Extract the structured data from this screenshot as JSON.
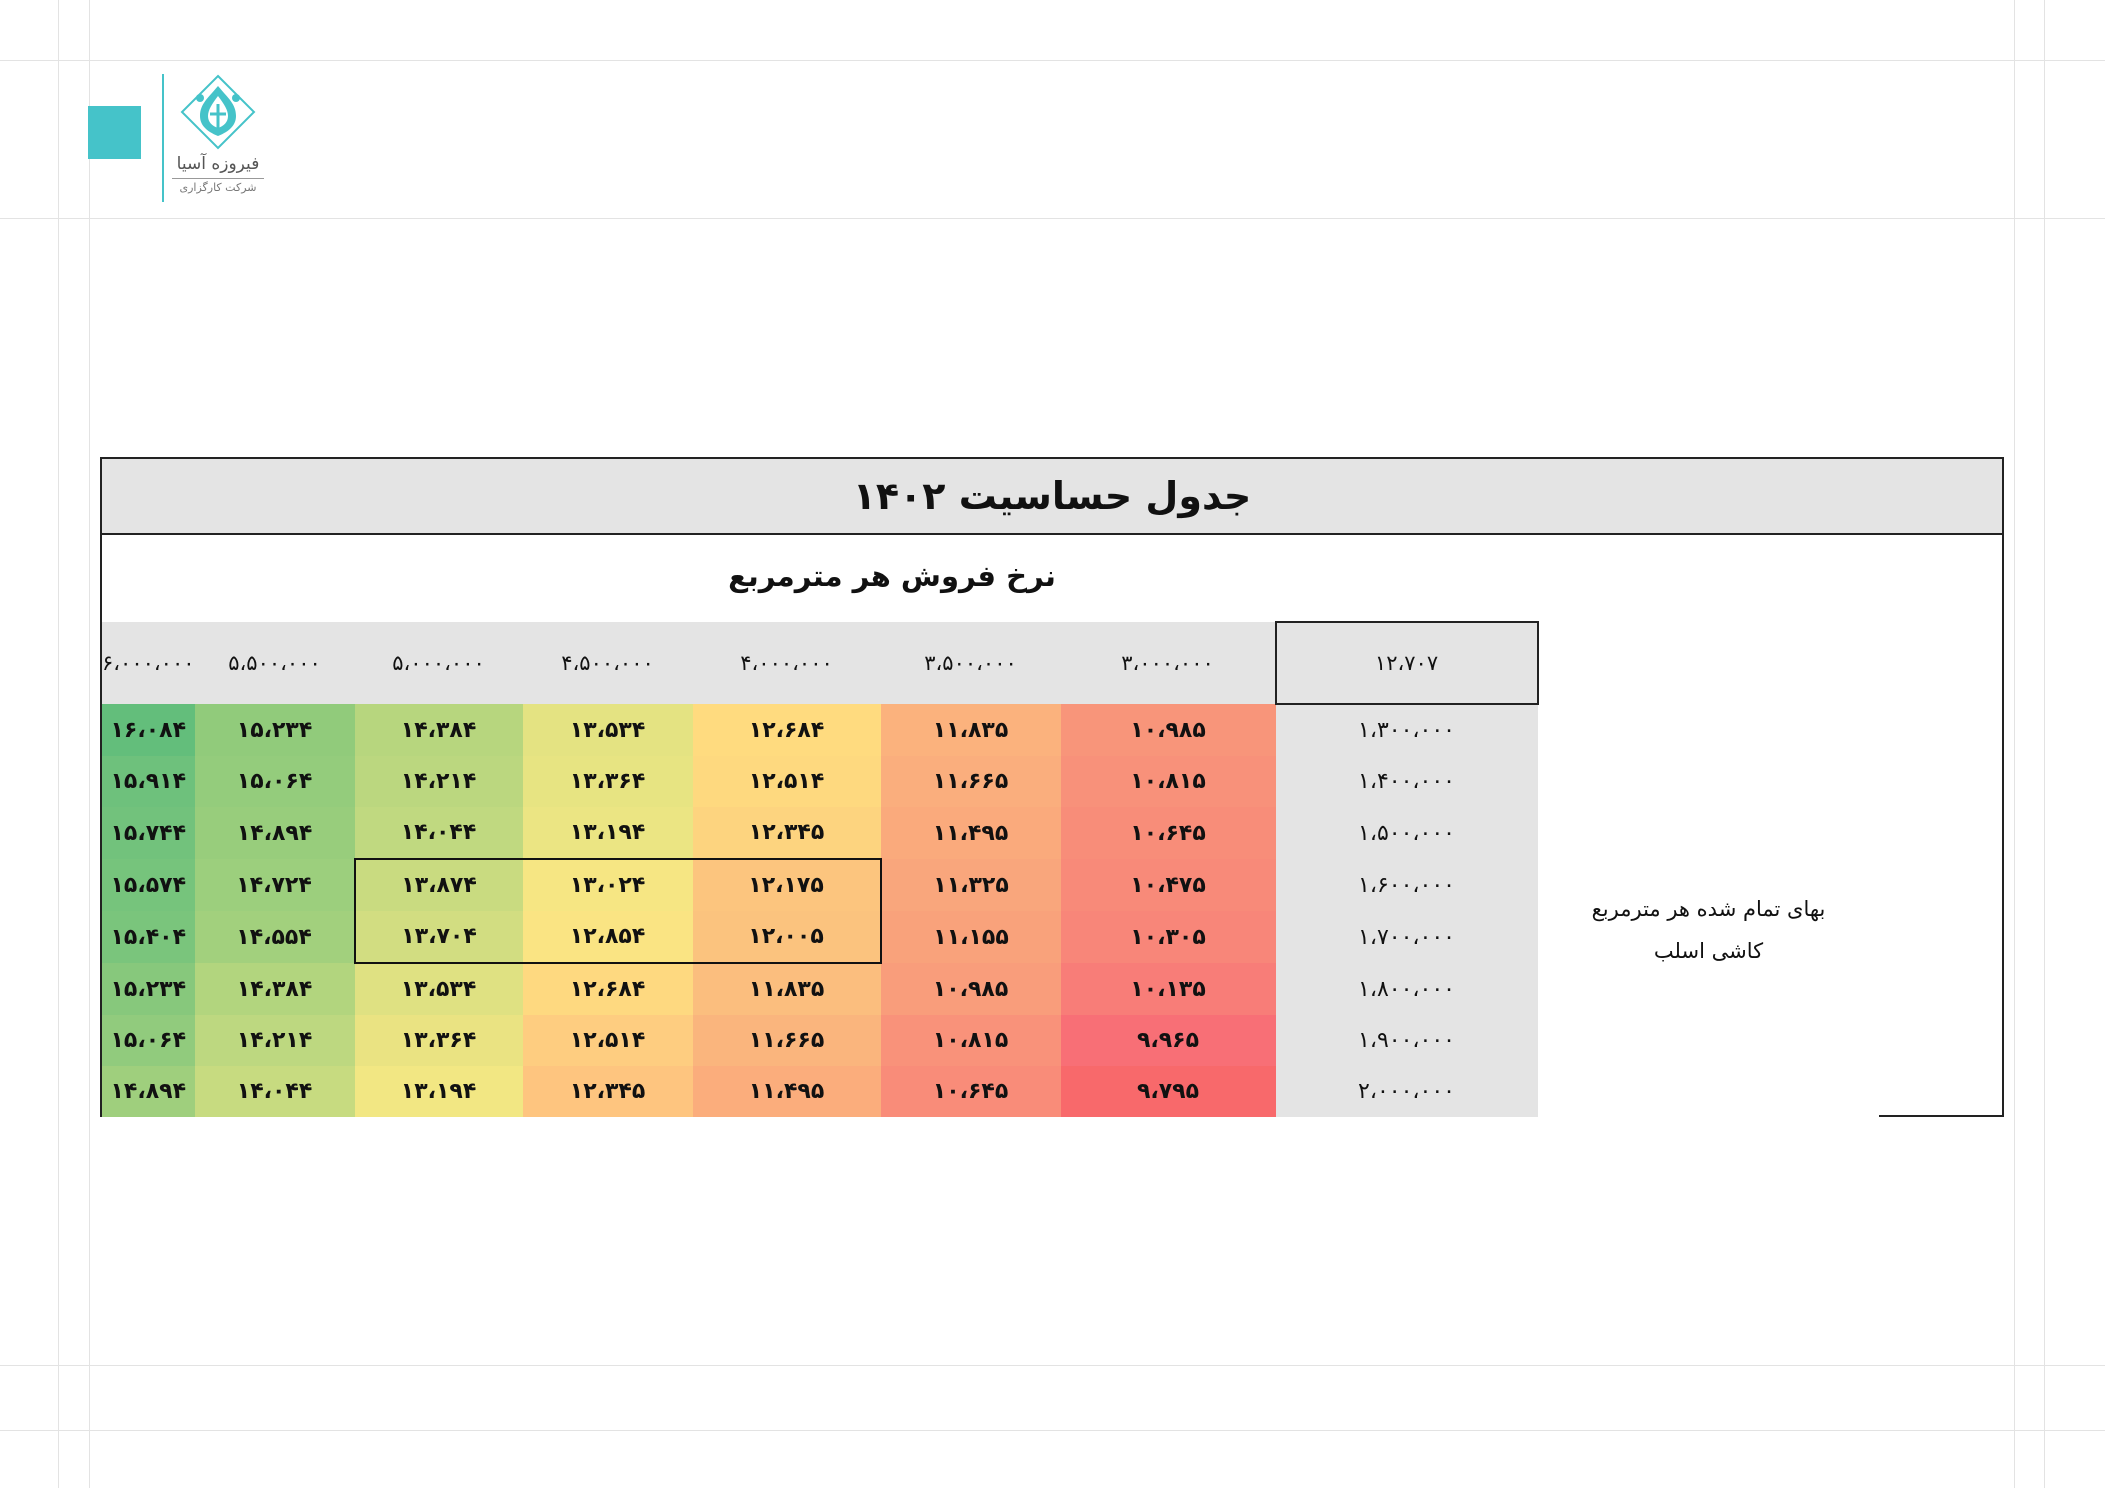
{
  "logo": {
    "name": "فیروزه آسیا",
    "subtitle": "شرکت کارگزاری",
    "accent_color": "#45c3c9"
  },
  "table": {
    "title": "جدول حساسیت ۱۴۰۲",
    "column_axis_label": "نرخ فروش هر مترمربع",
    "row_axis_label_line1": "بهای تمام شده هر مترمربع",
    "row_axis_label_line2": "کاشی اسلب",
    "base_value": "۱۲،۷۰۷",
    "column_headers": [
      "۳،۰۰۰،۰۰۰",
      "۳،۵۰۰،۰۰۰",
      "۴،۰۰۰،۰۰۰",
      "۴،۵۰۰،۰۰۰",
      "۵،۰۰۰،۰۰۰",
      "۵،۵۰۰،۰۰۰",
      "۶،۰۰۰،۰۰۰"
    ],
    "rows": [
      {
        "header": "۱،۳۰۰،۰۰۰",
        "cells": [
          "۱۰،۹۸۵",
          "۱۱،۸۳۵",
          "۱۲،۶۸۴",
          "۱۳،۵۳۴",
          "۱۴،۳۸۴",
          "۱۵،۲۳۴",
          "۱۶،۰۸۴"
        ]
      },
      {
        "header": "۱،۴۰۰،۰۰۰",
        "cells": [
          "۱۰،۸۱۵",
          "۱۱،۶۶۵",
          "۱۲،۵۱۴",
          "۱۳،۳۶۴",
          "۱۴،۲۱۴",
          "۱۵،۰۶۴",
          "۱۵،۹۱۴"
        ]
      },
      {
        "header": "۱،۵۰۰،۰۰۰",
        "cells": [
          "۱۰،۶۴۵",
          "۱۱،۴۹۵",
          "۱۲،۳۴۵",
          "۱۳،۱۹۴",
          "۱۴،۰۴۴",
          "۱۴،۸۹۴",
          "۱۵،۷۴۴"
        ]
      },
      {
        "header": "۱،۶۰۰،۰۰۰",
        "cells": [
          "۱۰،۴۷۵",
          "۱۱،۳۲۵",
          "۱۲،۱۷۵",
          "۱۳،۰۲۴",
          "۱۳،۸۷۴",
          "۱۴،۷۲۴",
          "۱۵،۵۷۴"
        ]
      },
      {
        "header": "۱،۷۰۰،۰۰۰",
        "cells": [
          "۱۰،۳۰۵",
          "۱۱،۱۵۵",
          "۱۲،۰۰۵",
          "۱۲،۸۵۴",
          "۱۳،۷۰۴",
          "۱۴،۵۵۴",
          "۱۵،۴۰۴"
        ]
      },
      {
        "header": "۱،۸۰۰،۰۰۰",
        "cells": [
          "۱۰،۱۳۵",
          "۱۰،۹۸۵",
          "۱۱،۸۳۵",
          "۱۲،۶۸۴",
          "۱۳،۵۳۴",
          "۱۴،۳۸۴",
          "۱۵،۲۳۴"
        ]
      },
      {
        "header": "۱،۹۰۰،۰۰۰",
        "cells": [
          "۹،۹۶۵",
          "۱۰،۸۱۵",
          "۱۱،۶۶۵",
          "۱۲،۵۱۴",
          "۱۳،۳۶۴",
          "۱۴،۲۱۴",
          "۱۵،۰۶۴"
        ]
      },
      {
        "header": "۲،۰۰۰،۰۰۰",
        "cells": [
          "۹،۷۹۵",
          "۱۰،۶۴۵",
          "۱۱،۴۹۵",
          "۱۲،۳۴۵",
          "۱۳،۱۹۴",
          "۱۴،۰۴۴",
          "۱۴،۸۹۴"
        ]
      }
    ],
    "cell_colors": [
      [
        "#f8957a",
        "#fbb27d",
        "#ffdb7f",
        "#e4e382",
        "#b7d67e",
        "#91cb7b",
        "#63be7b"
      ],
      [
        "#f8917a",
        "#faae7d",
        "#fed97f",
        "#e7e482",
        "#bbd77f",
        "#94cc7c",
        "#6ec17c"
      ],
      [
        "#f88d79",
        "#faaa7c",
        "#fdd47f",
        "#ebe583",
        "#c0d980",
        "#98cd7c",
        "#72c27c"
      ],
      [
        "#f88a79",
        "#f9a67c",
        "#fcc57e",
        "#f6e683",
        "#c9db80",
        "#9ccf7d",
        "#76c47c"
      ],
      [
        "#f88679",
        "#f9a27b",
        "#fbc37e",
        "#fae483",
        "#d2dd81",
        "#a2d07d",
        "#7ac57c"
      ],
      [
        "#f87d78",
        "#f99d7b",
        "#fbbe7e",
        "#fed980",
        "#dfe182",
        "#b2d57e",
        "#87c87c"
      ],
      [
        "#f86f76",
        "#f9927a",
        "#fab57d",
        "#fecd80",
        "#eae382",
        "#bdd880",
        "#91cb7d"
      ],
      [
        "#f8696b",
        "#f98c79",
        "#fbad7c",
        "#fec57f",
        "#f2e783",
        "#c7db80",
        "#9fcf7d"
      ]
    ],
    "base_area_color": "#e4e4e4",
    "highlight_box": "rows 4-5, columns 3-5"
  }
}
